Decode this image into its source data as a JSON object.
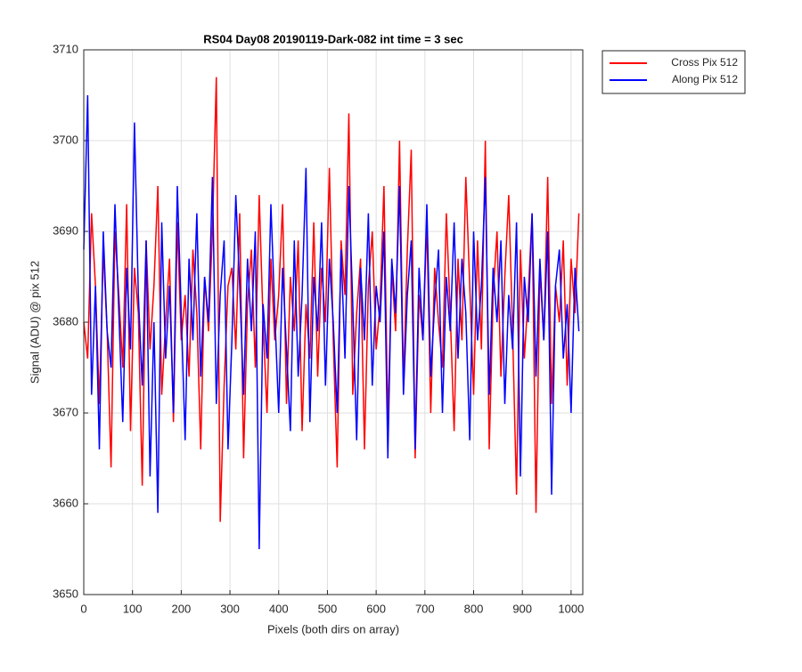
{
  "chart_data": {
    "type": "line",
    "title": "RS04 Day08 20190119-Dark-082 int time = 3 sec",
    "xlabel": "Pixels (both dirs on array)",
    "ylabel": "Signal (ADU) @ pix 512",
    "x": [
      0,
      8,
      16,
      24,
      32,
      40,
      48,
      56,
      64,
      72,
      80,
      88,
      96,
      104,
      112,
      120,
      128,
      136,
      144,
      152,
      160,
      168,
      176,
      184,
      192,
      200,
      208,
      216,
      224,
      232,
      240,
      248,
      256,
      264,
      272,
      280,
      288,
      296,
      304,
      312,
      320,
      328,
      336,
      344,
      352,
      360,
      368,
      376,
      384,
      392,
      400,
      408,
      416,
      424,
      432,
      440,
      448,
      456,
      464,
      472,
      480,
      488,
      496,
      504,
      512,
      520,
      528,
      536,
      544,
      552,
      560,
      568,
      576,
      584,
      592,
      600,
      608,
      616,
      624,
      632,
      640,
      648,
      656,
      664,
      672,
      680,
      688,
      696,
      704,
      712,
      720,
      728,
      736,
      744,
      752,
      760,
      768,
      776,
      784,
      792,
      800,
      808,
      816,
      824,
      832,
      840,
      848,
      856,
      864,
      872,
      880,
      888,
      896,
      904,
      912,
      920,
      928,
      936,
      944,
      952,
      960,
      968,
      976,
      984,
      992,
      1000,
      1008,
      1016
    ],
    "series": [
      {
        "name": "Cross Pix 512",
        "color": "#ff0000",
        "values": [
          3680,
          3676,
          3692,
          3684,
          3671,
          3688,
          3679,
          3664,
          3690,
          3683,
          3675,
          3693,
          3668,
          3686,
          3681,
          3662,
          3689,
          3677,
          3684,
          3695,
          3672,
          3680,
          3687,
          3669,
          3691,
          3678,
          3683,
          3674,
          3688,
          3681,
          3666,
          3685,
          3679,
          3690,
          3707,
          3658,
          3673,
          3684,
          3686,
          3677,
          3692,
          3665,
          3682,
          3688,
          3675,
          3694,
          3680,
          3670,
          3687,
          3678,
          3683,
          3693,
          3671,
          3685,
          3679,
          3689,
          3668,
          3682,
          3676,
          3691,
          3674,
          3686,
          3680,
          3697,
          3678,
          3664,
          3689,
          3683,
          3703,
          3672,
          3681,
          3687,
          3666,
          3684,
          3690,
          3677,
          3682,
          3695,
          3669,
          3686,
          3679,
          3700,
          3673,
          3688,
          3699,
          3665,
          3683,
          3678,
          3691,
          3670,
          3686,
          3680,
          3675,
          3692,
          3681,
          3668,
          3687,
          3678,
          3696,
          3684,
          3672,
          3689,
          3677,
          3700,
          3666,
          3683,
          3690,
          3674,
          3685,
          3694,
          3679,
          3661,
          3688,
          3676,
          3683,
          3692,
          3659,
          3686,
          3678,
          3696,
          3671,
          3684,
          3680,
          3689,
          3673,
          3687,
          3681,
          3692
        ]
      },
      {
        "name": "Along Pix 512",
        "color": "#0000ff",
        "values": [
          3688,
          3705,
          3672,
          3684,
          3666,
          3690,
          3679,
          3675,
          3693,
          3681,
          3669,
          3686,
          3677,
          3702,
          3683,
          3673,
          3689,
          3663,
          3680,
          3659,
          3691,
          3676,
          3684,
          3670,
          3695,
          3681,
          3667,
          3687,
          3678,
          3692,
          3674,
          3685,
          3680,
          3696,
          3671,
          3683,
          3689,
          3666,
          3678,
          3694,
          3684,
          3672,
          3687,
          3679,
          3690,
          3655,
          3682,
          3676,
          3693,
          3681,
          3670,
          3686,
          3677,
          3668,
          3689,
          3674,
          3683,
          3697,
          3669,
          3685,
          3679,
          3691,
          3673,
          3687,
          3680,
          3670,
          3688,
          3676,
          3695,
          3682,
          3667,
          3686,
          3678,
          3692,
          3673,
          3684,
          3680,
          3690,
          3665,
          3687,
          3681,
          3695,
          3672,
          3683,
          3689,
          3666,
          3686,
          3678,
          3693,
          3674,
          3682,
          3688,
          3670,
          3685,
          3679,
          3691,
          3676,
          3687,
          3681,
          3667,
          3690,
          3678,
          3684,
          3696,
          3672,
          3686,
          3680,
          3689,
          3671,
          3683,
          3677,
          3691,
          3663,
          3685,
          3680,
          3692,
          3674,
          3687,
          3678,
          3690,
          3661,
          3684,
          3688,
          3676,
          3682,
          3670,
          3686,
          3679
        ]
      }
    ],
    "xlim": [
      0,
      1024
    ],
    "ylim": [
      3650,
      3710
    ],
    "xticks": [
      0,
      100,
      200,
      300,
      400,
      500,
      600,
      700,
      800,
      900,
      1000
    ],
    "yticks": [
      3650,
      3660,
      3670,
      3680,
      3690,
      3700,
      3710
    ],
    "grid": true,
    "legend": "northeastoutside"
  }
}
